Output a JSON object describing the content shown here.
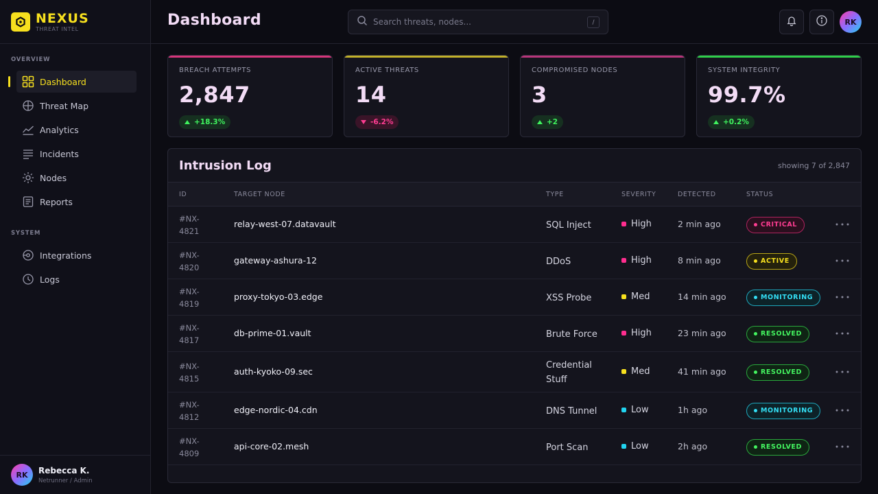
{
  "brand": {
    "name": "NEXUS",
    "subtitle": "THREAT INTEL"
  },
  "sidebar": {
    "section_overview": "OVERVIEW",
    "section_system": "SYSTEM",
    "items": [
      {
        "label": "Dashboard",
        "icon": "grid-icon",
        "active": true
      },
      {
        "label": "Threat Map",
        "icon": "globe-icon"
      },
      {
        "label": "Analytics",
        "icon": "chart-line-icon"
      },
      {
        "label": "Incidents",
        "icon": "list-icon"
      },
      {
        "label": "Nodes",
        "icon": "sun-icon"
      },
      {
        "label": "Reports",
        "icon": "document-icon"
      },
      {
        "label": "Integrations",
        "icon": "plug-icon"
      },
      {
        "label": "Logs",
        "icon": "clock-icon"
      }
    ]
  },
  "user": {
    "initials": "RK",
    "name": "Rebecca K.",
    "role": "Netrunner / Admin"
  },
  "header": {
    "title": "Dashboard",
    "search_placeholder": "Search threats, nodes...",
    "search_shortcut": "/",
    "avatar_initials": "RK"
  },
  "kpis": [
    {
      "label": "BREACH ATTEMPTS",
      "value": "2,847",
      "delta": "+18.3%",
      "direction": "up",
      "accent": "#d6357a"
    },
    {
      "label": "ACTIVE THREATS",
      "value": "14",
      "delta": "-6.2%",
      "direction": "down",
      "accent": "#c2b12a"
    },
    {
      "label": "COMPROMISED NODES",
      "value": "3",
      "delta": "+2",
      "direction": "up",
      "accent": "#b8357a"
    },
    {
      "label": "SYSTEM INTEGRITY",
      "value": "99.7%",
      "delta": "+0.2%",
      "direction": "up",
      "accent": "#2fcf4a"
    }
  ],
  "log": {
    "title": "Intrusion Log",
    "count": "showing 7 of 2,847",
    "columns": [
      "ID",
      "TARGET NODE",
      "TYPE",
      "SEVERITY",
      "DETECTED",
      "STATUS"
    ],
    "rows": [
      {
        "id_prefix": "#NX-",
        "id_num": "4821",
        "node": "relay-west-07.datavault",
        "type": "SQL Inject",
        "severity": "High",
        "detected": "2 min ago",
        "status": "CRITICAL"
      },
      {
        "id_prefix": "#NX-",
        "id_num": "4820",
        "node": "gateway-ashura-12",
        "type": "DDoS",
        "severity": "High",
        "detected": "8 min ago",
        "status": "ACTIVE"
      },
      {
        "id_prefix": "#NX-",
        "id_num": "4819",
        "node": "proxy-tokyo-03.edge",
        "type": "XSS Probe",
        "severity": "Med",
        "detected": "14 min ago",
        "status": "MONITORING"
      },
      {
        "id_prefix": "#NX-",
        "id_num": "4817",
        "node": "db-prime-01.vault",
        "type": "Brute Force",
        "severity": "High",
        "detected": "23 min ago",
        "status": "RESOLVED"
      },
      {
        "id_prefix": "#NX-",
        "id_num": "4815",
        "node": "auth-kyoko-09.sec",
        "type": "Credential Stuff",
        "severity": "Med",
        "detected": "41 min ago",
        "status": "RESOLVED"
      },
      {
        "id_prefix": "#NX-",
        "id_num": "4812",
        "node": "edge-nordic-04.cdn",
        "type": "DNS Tunnel",
        "severity": "Low",
        "detected": "1h ago",
        "status": "MONITORING"
      },
      {
        "id_prefix": "#NX-",
        "id_num": "4809",
        "node": "api-core-02.mesh",
        "type": "Port Scan",
        "severity": "Low",
        "detected": "2h ago",
        "status": "RESOLVED"
      }
    ]
  },
  "colors": {
    "severity": {
      "High": "#ff2d8f",
      "Med": "#f7e01e",
      "Low": "#21d4f0"
    },
    "status": {
      "CRITICAL": {
        "fg": "#ff3d92",
        "bg": "#2a0f1e",
        "border": "#b0245f"
      },
      "ACTIVE": {
        "fg": "#f7e01e",
        "bg": "#24210c",
        "border": "#b8a518"
      },
      "MONITORING": {
        "fg": "#33dff5",
        "bg": "#0d2228",
        "border": "#1ea8bd"
      },
      "RESOLVED": {
        "fg": "#44f560",
        "bg": "#0f2414",
        "border": "#2aa83c"
      }
    }
  }
}
